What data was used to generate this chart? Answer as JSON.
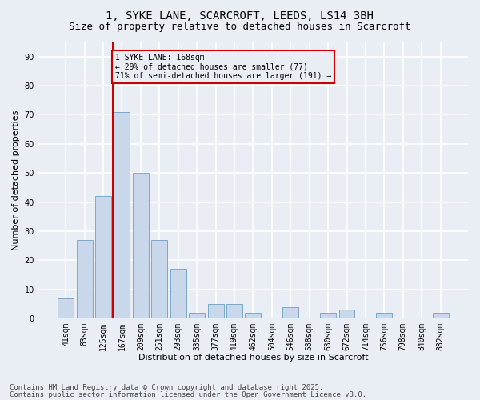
{
  "title1": "1, SYKE LANE, SCARCROFT, LEEDS, LS14 3BH",
  "title2": "Size of property relative to detached houses in Scarcroft",
  "xlabel": "Distribution of detached houses by size in Scarcroft",
  "ylabel": "Number of detached properties",
  "categories": [
    "41sqm",
    "83sqm",
    "125sqm",
    "167sqm",
    "209sqm",
    "251sqm",
    "293sqm",
    "335sqm",
    "377sqm",
    "419sqm",
    "462sqm",
    "504sqm",
    "546sqm",
    "588sqm",
    "630sqm",
    "672sqm",
    "714sqm",
    "756sqm",
    "798sqm",
    "840sqm",
    "882sqm"
  ],
  "values": [
    7,
    27,
    42,
    71,
    50,
    27,
    17,
    2,
    5,
    5,
    2,
    0,
    4,
    0,
    2,
    3,
    0,
    2,
    0,
    0,
    2
  ],
  "bar_color": "#c8d8ea",
  "bar_edge_color": "#7aaac8",
  "marker_color": "#cc0000",
  "ylim": [
    0,
    95
  ],
  "yticks": [
    0,
    10,
    20,
    30,
    40,
    50,
    60,
    70,
    80,
    90
  ],
  "annotation_text": "1 SYKE LANE: 168sqm\n← 29% of detached houses are smaller (77)\n71% of semi-detached houses are larger (191) →",
  "annotation_box_color": "#cc0000",
  "footer1": "Contains HM Land Registry data © Crown copyright and database right 2025.",
  "footer2": "Contains public sector information licensed under the Open Government Licence v3.0.",
  "background_color": "#e8eef4",
  "grid_color": "#ffffff",
  "title_fontsize": 10,
  "subtitle_fontsize": 9,
  "axis_label_fontsize": 8,
  "tick_fontsize": 7,
  "footer_fontsize": 6.5,
  "ann_fontsize": 7
}
